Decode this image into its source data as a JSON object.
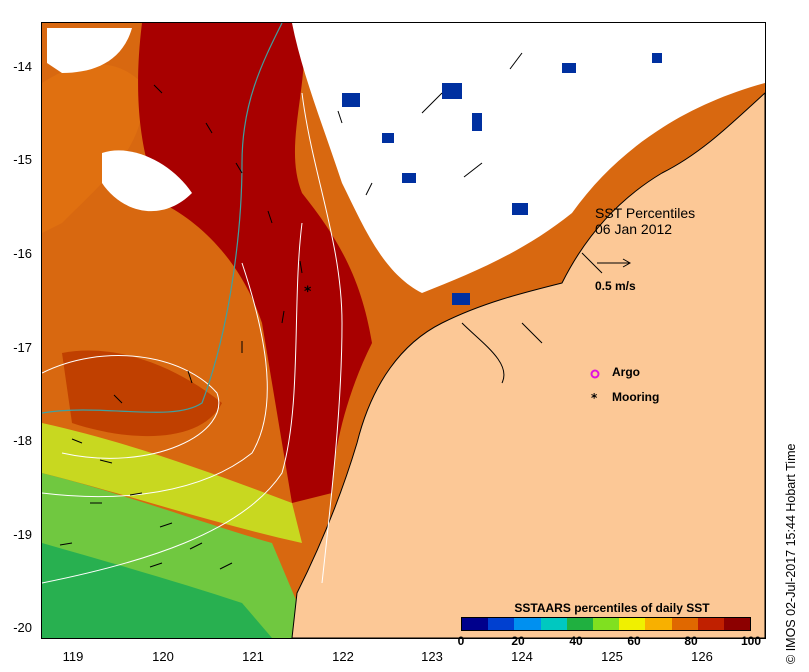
{
  "map": {
    "title": "SST Percentiles",
    "date": "06 Jan 2012",
    "vector_scale_label": "0.5 m/s",
    "legend": [
      {
        "label": "Argo",
        "symbol": "circle-magenta"
      },
      {
        "label": "Mooring",
        "symbol": "asterisk-black"
      }
    ],
    "x_ticks": [
      "119",
      "120",
      "121",
      "122",
      "123",
      "124",
      "125",
      "126"
    ],
    "y_ticks": [
      "-14",
      "-15",
      "-16",
      "-17",
      "-18",
      "-19",
      "-20"
    ],
    "lon_range": [
      118.7,
      126.7
    ],
    "lat_range": [
      -20.15,
      -13.45
    ],
    "mooring": {
      "lon": 121.6,
      "lat": -16.4
    },
    "land_color": "#fcc896"
  },
  "colorbar": {
    "title": "SSTAARS percentiles of daily SST",
    "labels": [
      "0",
      "20",
      "40",
      "60",
      "80",
      "100"
    ],
    "colors": [
      "#00008c",
      "#0040d0",
      "#0090f0",
      "#00c8c0",
      "#20b040",
      "#80e020",
      "#f0f000",
      "#f8b000",
      "#e06800",
      "#c02000",
      "#8c0000"
    ]
  },
  "credit": "IMOS 02-Jul-2017 15:44 Hobart Time",
  "copyright_symbol": "©"
}
